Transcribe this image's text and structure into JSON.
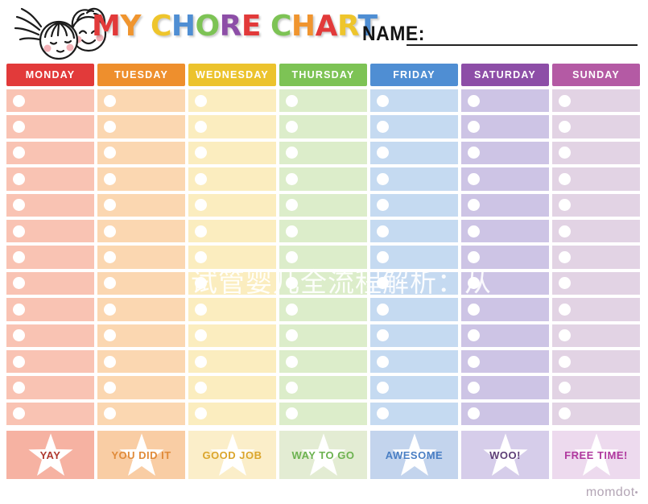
{
  "header": {
    "title_letters": [
      {
        "ch": "M",
        "color": "#e23a3a"
      },
      {
        "ch": "Y",
        "color": "#f0952f"
      },
      {
        "ch": " ",
        "color": "#000000"
      },
      {
        "ch": "C",
        "color": "#eec52c"
      },
      {
        "ch": "H",
        "color": "#4f8ed3"
      },
      {
        "ch": "O",
        "color": "#7dc355"
      },
      {
        "ch": "R",
        "color": "#8d4ea7"
      },
      {
        "ch": "E",
        "color": "#e23a3a"
      },
      {
        "ch": " ",
        "color": "#000000"
      },
      {
        "ch": "C",
        "color": "#7dc355"
      },
      {
        "ch": "H",
        "color": "#f0952f"
      },
      {
        "ch": "A",
        "color": "#e23a3a"
      },
      {
        "ch": "R",
        "color": "#eec52c"
      },
      {
        "ch": "T",
        "color": "#4f8ed3"
      }
    ],
    "name_label": "NAME:",
    "name_value": ""
  },
  "grid": {
    "rows_per_day": 13,
    "days": [
      {
        "name": "MONDAY",
        "header_color": "#e23a3a",
        "cell_color": "#f9c3b3",
        "bottom_color": "#f6b2a2",
        "bottom_label": "YAY",
        "bottom_label_color": "#b03a30"
      },
      {
        "name": "TUESDAY",
        "header_color": "#ee8f2d",
        "cell_color": "#fbd7b1",
        "bottom_color": "#f9cda4",
        "bottom_label": "YOU DID IT",
        "bottom_label_color": "#e08b3a"
      },
      {
        "name": "WEDNESDAY",
        "header_color": "#ecc32d",
        "cell_color": "#fbedbf",
        "bottom_color": "#fbeec9",
        "bottom_label": "GOOD JOB",
        "bottom_label_color": "#dba52c"
      },
      {
        "name": "THURSDAY",
        "header_color": "#7dc355",
        "cell_color": "#dcedca",
        "bottom_color": "#e3ecd3",
        "bottom_label": "WAY TO GO",
        "bottom_label_color": "#6cb250"
      },
      {
        "name": "FRIDAY",
        "header_color": "#4f8ed3",
        "cell_color": "#c5daf1",
        "bottom_color": "#c3d4ed",
        "bottom_label": "AWESOME",
        "bottom_label_color": "#4a7fc4"
      },
      {
        "name": "SATURDAY",
        "header_color": "#8d4ea7",
        "cell_color": "#cdc4e5",
        "bottom_color": "#d6cdea",
        "bottom_label": "WOO!",
        "bottom_label_color": "#5e3f77"
      },
      {
        "name": "SUNDAY",
        "header_color": "#b45aa4",
        "cell_color": "#e2d3e4",
        "bottom_color": "#eddaee",
        "bottom_label": "FREE TIME!",
        "bottom_label_color": "#b0399e"
      }
    ]
  },
  "watermark": {
    "text": "试管婴儿全流程解析：从"
  },
  "footer": {
    "brand": "momdot",
    "brand_dot": "•"
  }
}
